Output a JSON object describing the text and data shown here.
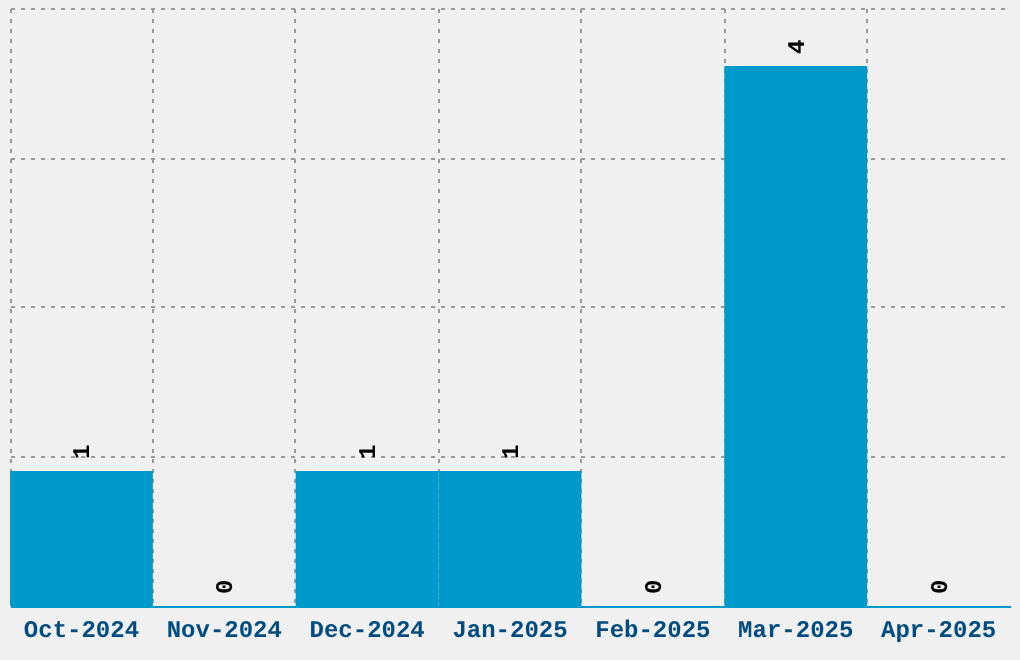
{
  "chart_data": {
    "type": "bar",
    "categories": [
      "Oct-2024",
      "Nov-2024",
      "Dec-2024",
      "Jan-2025",
      "Feb-2025",
      "Mar-2025",
      "Apr-2025"
    ],
    "values": [
      1,
      0,
      1,
      1,
      0,
      4,
      0
    ],
    "color": "#0099cc",
    "ylim": [
      0,
      4.43
    ],
    "yticks": [
      {
        "value": 1.11,
        "label": null
      },
      {
        "value": 2.22,
        "label": null
      },
      {
        "value": 3.32,
        "label": null
      },
      {
        "value": 4.43,
        "label": null
      }
    ],
    "grid": true,
    "data_labels": true,
    "tick_labels": "x"
  }
}
